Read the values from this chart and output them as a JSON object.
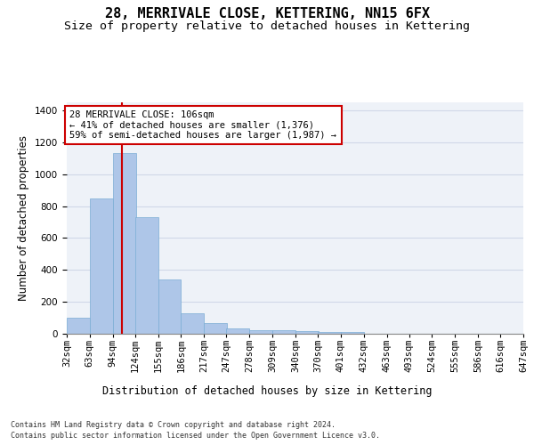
{
  "title": "28, MERRIVALE CLOSE, KETTERING, NN15 6FX",
  "subtitle": "Size of property relative to detached houses in Kettering",
  "xlabel": "Distribution of detached houses by size in Kettering",
  "ylabel": "Number of detached properties",
  "footer_line1": "Contains HM Land Registry data © Crown copyright and database right 2024.",
  "footer_line2": "Contains public sector information licensed under the Open Government Licence v3.0.",
  "bin_labels": [
    "32sqm",
    "63sqm",
    "94sqm",
    "124sqm",
    "155sqm",
    "186sqm",
    "217sqm",
    "247sqm",
    "278sqm",
    "309sqm",
    "340sqm",
    "370sqm",
    "401sqm",
    "432sqm",
    "463sqm",
    "493sqm",
    "524sqm",
    "555sqm",
    "586sqm",
    "616sqm",
    "647sqm"
  ],
  "bin_edges": [
    32,
    63,
    94,
    124,
    155,
    186,
    217,
    247,
    278,
    309,
    340,
    370,
    401,
    432,
    463,
    493,
    524,
    555,
    586,
    616,
    647
  ],
  "bar_values": [
    100,
    850,
    1130,
    730,
    340,
    130,
    65,
    35,
    25,
    20,
    15,
    10,
    10,
    0,
    0,
    0,
    0,
    0,
    0,
    0
  ],
  "bar_color": "#aec6e8",
  "bar_edge_color": "#7aadd4",
  "grid_color": "#d0d8e8",
  "bg_color": "#eef2f8",
  "property_line_x": 106,
  "property_line_color": "#cc0000",
  "annotation_text": "28 MERRIVALE CLOSE: 106sqm\n← 41% of detached houses are smaller (1,376)\n59% of semi-detached houses are larger (1,987) →",
  "annotation_box_color": "#ffffff",
  "annotation_box_edge_color": "#cc0000",
  "ylim": [
    0,
    1450
  ],
  "yticks": [
    0,
    200,
    400,
    600,
    800,
    1000,
    1200,
    1400
  ],
  "title_fontsize": 11,
  "subtitle_fontsize": 9.5,
  "axis_label_fontsize": 8.5,
  "tick_fontsize": 7.5,
  "annotation_fontsize": 7.5,
  "footer_fontsize": 6.0
}
